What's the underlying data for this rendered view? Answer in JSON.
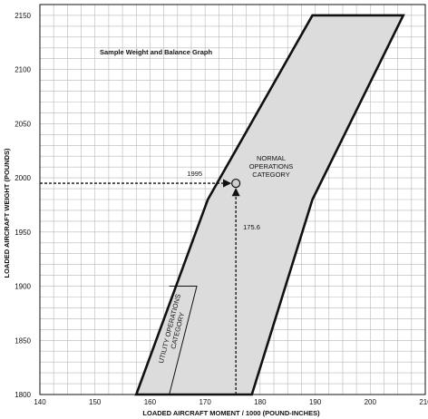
{
  "chart_data": {
    "type": "area",
    "title": "Sample Weight and Balance Graph",
    "xlabel": "LOADED AIRCRAFT MOMENT / 1000 (POUND-INCHES)",
    "ylabel": "LOADED AIRCRAFT WEIGHT (POUNDS)",
    "xlim": [
      140,
      210
    ],
    "ylim": [
      1800,
      2160
    ],
    "grid": true,
    "x_ticks": [
      140,
      150,
      160,
      170,
      180,
      190,
      200,
      210
    ],
    "x_tick_labels": [
      "140",
      "150",
      "160",
      "170",
      "180",
      "190",
      "200",
      "210"
    ],
    "y_ticks": [
      1800,
      1850,
      1900,
      1950,
      2000,
      2050,
      2100,
      2150
    ],
    "y_tick_labels": [
      "1800",
      "1850",
      "1900",
      "1950",
      "2000",
      "2050",
      "2100",
      "2150"
    ],
    "envelope": {
      "label_lines": [
        "NORMAL",
        "OPERATIONS",
        "CATEGORY"
      ],
      "points": [
        [
          157.5,
          1800
        ],
        [
          170.5,
          1980
        ],
        [
          189.5,
          2150
        ],
        [
          206,
          2150
        ],
        [
          189.5,
          1980
        ],
        [
          178.5,
          1800
        ]
      ]
    },
    "utility_region": {
      "label_lines": [
        "UTILITY OPERATIONS",
        "CATEGORY"
      ],
      "points": [
        [
          163.5,
          1800
        ],
        [
          168.5,
          1900
        ],
        [
          163.5,
          1900
        ]
      ]
    },
    "point": {
      "x": 175.6,
      "y": 1995
    },
    "annotations": {
      "weight_label": "1995",
      "moment_label": "175.6"
    },
    "colors": {
      "envelope_fill": "#dcdcdc",
      "grid": "#b8b8b8",
      "line": "#111111"
    }
  }
}
